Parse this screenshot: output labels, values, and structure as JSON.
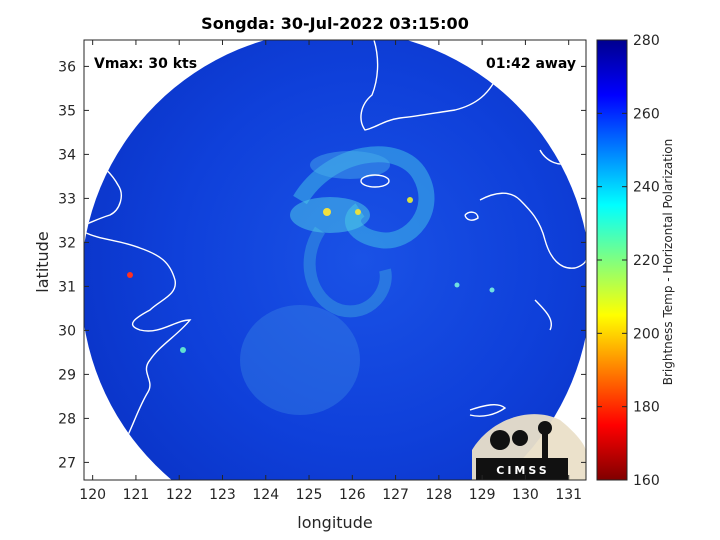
{
  "title": "Songda: 30-Jul-2022 03:15:00",
  "annotations": {
    "vmax": "Vmax: 30 kts",
    "time_away": "01:42 away"
  },
  "axes": {
    "xlabel": "longitude",
    "ylabel": "latitude",
    "xticks": [
      120,
      121,
      122,
      123,
      124,
      125,
      126,
      127,
      128,
      129,
      130,
      131
    ],
    "yticks": [
      27,
      28,
      29,
      30,
      31,
      32,
      33,
      34,
      35,
      36
    ],
    "xlim": [
      119.8,
      131.4
    ],
    "ylim": [
      26.6,
      36.6
    ]
  },
  "colorbar": {
    "label": "Brightness Temp - Horizontal Polarization",
    "ticks": [
      160,
      180,
      200,
      220,
      240,
      260,
      280
    ],
    "range": [
      160,
      280
    ],
    "colormap": "jet"
  },
  "logo": {
    "text": "CIMSS",
    "icon": "cimss-logo-icon"
  },
  "colors": {
    "background_swath": "#0b3ed8",
    "outside": "#ffffff",
    "coastline": "#ffffff"
  }
}
